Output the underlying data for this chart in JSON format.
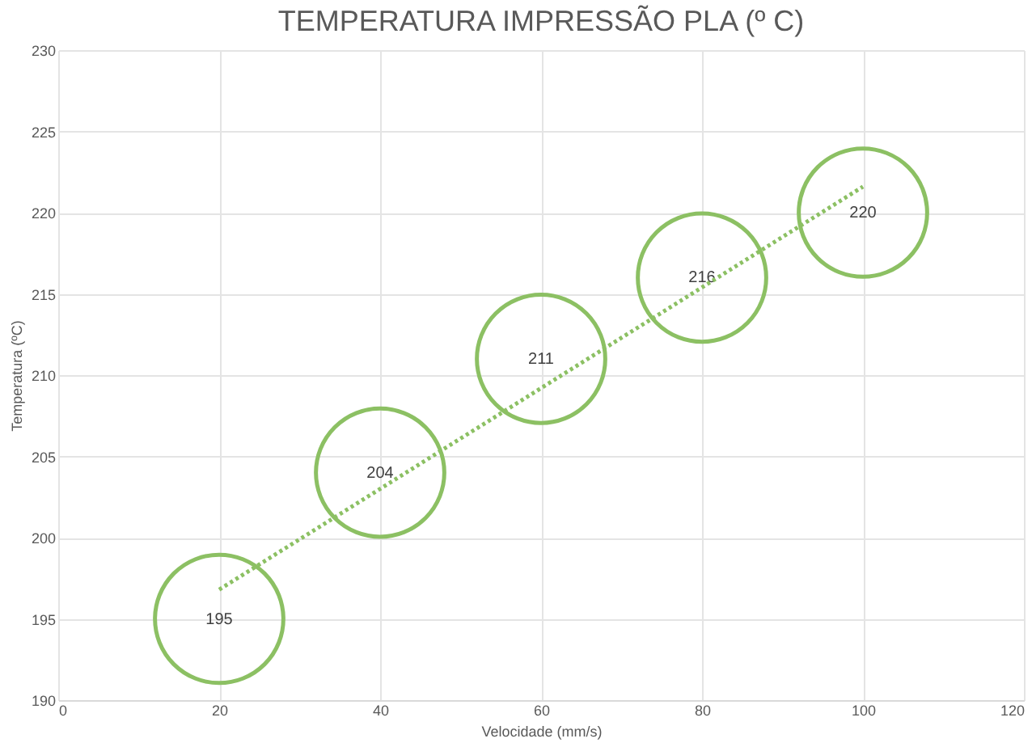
{
  "chart_data": {
    "type": "bubble",
    "title": "TEMPERATURA IMPRESSÃO PLA (º C)",
    "xlabel": "Velocidade (mm/s)",
    "ylabel": "Temperatura (ºC)",
    "x": [
      20,
      40,
      60,
      80,
      100
    ],
    "series": [
      {
        "color": "#8cc063",
        "values": [
          195,
          204,
          211,
          216,
          220
        ],
        "sizes": [
          1,
          1,
          1,
          1,
          1
        ],
        "value_labels": [
          "195",
          "204",
          "211",
          "216",
          "220"
        ]
      },
      {
        "type": "line",
        "color": "#8cc063",
        "x": [
          20,
          100
        ],
        "values": [
          196.8,
          221.6
        ],
        "line_style": "dotted"
      }
    ],
    "xlim": [
      0,
      120
    ],
    "xticks": [
      0,
      20,
      40,
      60,
      80,
      100,
      120
    ],
    "ylim": [
      190,
      230
    ],
    "yticks": [
      190,
      195,
      200,
      205,
      210,
      215,
      220,
      225,
      230
    ],
    "grid": true,
    "legend": false
  }
}
